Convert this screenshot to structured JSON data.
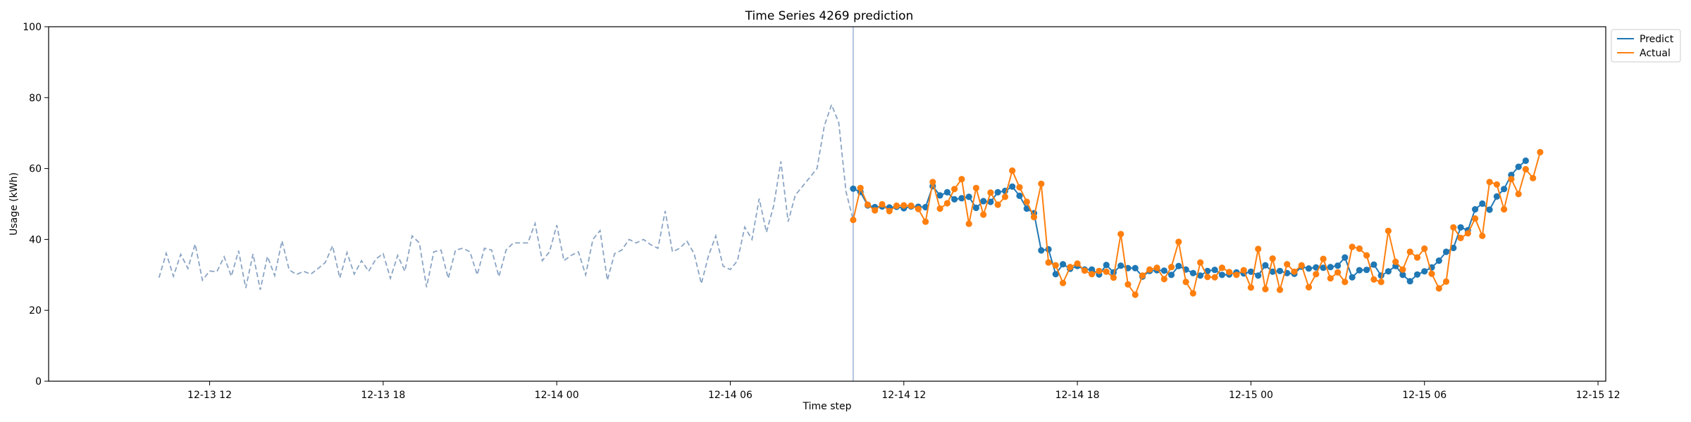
{
  "chart_data": {
    "type": "line",
    "title": "Time Series 4269 prediction",
    "xlabel": "Time step",
    "ylabel": "Usage (kWh)",
    "ylim": [
      0,
      100
    ],
    "yticks": [
      0,
      20,
      40,
      60,
      80,
      100
    ],
    "xlim": [
      "2025-12-13 06:26",
      "2025-12-15 12:16"
    ],
    "xticks": [
      {
        "t": "2025-12-13 12:00",
        "label": "12-13 12"
      },
      {
        "t": "2025-12-13 18:00",
        "label": "12-13 18"
      },
      {
        "t": "2025-12-14 00:00",
        "label": "12-14 00"
      },
      {
        "t": "2025-12-14 06:00",
        "label": "12-14 06"
      },
      {
        "t": "2025-12-14 12:00",
        "label": "12-14 12"
      },
      {
        "t": "2025-12-14 18:00",
        "label": "12-14 18"
      },
      {
        "t": "2025-12-15 00:00",
        "label": "12-15 00"
      },
      {
        "t": "2025-12-15 06:00",
        "label": "12-15 06"
      },
      {
        "t": "2025-12-15 12:00",
        "label": "12-15 12"
      }
    ],
    "grid": false,
    "legend_position": "top-right, outside plot",
    "forecast_start": "2025-12-14 10:15",
    "history": {
      "start": "2025-12-13 10:15",
      "interval_minutes": 15,
      "style": "dashed",
      "color": "#8aa4c4",
      "values": [
        29.2,
        36.1,
        29.6,
        35.8,
        31.8,
        38.7,
        28.5,
        31.1,
        30.9,
        35.1,
        29.6,
        36.8,
        26.3,
        35.9,
        25.8,
        35.2,
        29.8,
        39.6,
        31.4,
        30.1,
        31.0,
        30.2,
        31.8,
        33.5,
        38.2,
        29.1,
        36.3,
        30.2,
        34.0,
        31.0,
        34.5,
        36.0,
        29.0,
        35.5,
        31.0,
        41.0,
        39.0,
        26.5,
        36.5,
        37.0,
        29.0,
        37.0,
        37.5,
        36.5,
        30.0,
        37.5,
        37.0,
        29.5,
        37.0,
        39.0,
        39.0,
        39.0,
        44.5,
        34.0,
        36.5,
        44.0,
        34.0,
        35.5,
        36.5,
        30.0,
        40.0,
        42.5,
        28.5,
        36.0,
        37.0,
        40.0,
        39.0,
        40.0,
        38.5,
        37.5,
        48.0,
        36.5,
        37.5,
        39.5,
        36.0,
        27.5,
        35.5,
        41.0,
        32.5,
        31.5,
        34.0,
        43.5,
        40.0,
        51.5,
        42.0,
        49.5,
        62.0,
        45.0,
        52.5,
        55.0,
        57.5,
        60.0,
        72.0,
        78.0,
        73.0,
        53.5,
        45.5
      ]
    },
    "series": [
      {
        "name": "Predict",
        "color": "#1f77b4",
        "start": "2025-12-14 10:15",
        "interval_minutes": 15,
        "values": [
          54.3,
          53.4,
          49.6,
          49.1,
          49.3,
          49.0,
          49.2,
          48.8,
          49.3,
          49.2,
          49.1,
          55.0,
          52.4,
          53.3,
          51.3,
          51.6,
          52.0,
          48.9,
          50.8,
          50.6,
          53.3,
          53.7,
          54.9,
          52.3,
          48.7,
          47.4,
          36.9,
          37.2,
          30.2,
          33.0,
          31.7,
          32.5,
          31.5,
          31.5,
          30.1,
          32.8,
          30.7,
          32.6,
          31.9,
          31.9,
          29.5,
          31.1,
          31.3,
          31.2,
          30.0,
          32.5,
          31.5,
          30.5,
          29.8,
          31.1,
          31.4,
          30.0,
          30.1,
          30.7,
          30.4,
          30.9,
          29.8,
          32.7,
          30.9,
          31.1,
          30.5,
          30.3,
          32.3,
          31.8,
          32.1,
          32.0,
          32.2,
          32.6,
          34.9,
          29.3,
          31.3,
          31.4,
          32.9,
          29.8,
          31.0,
          32.5,
          30.0,
          28.2,
          30.1,
          31.0,
          32.1,
          34.0,
          36.5,
          37.6,
          43.4,
          42.6,
          48.5,
          50.1,
          48.4,
          52.1,
          54.2,
          58.2,
          60.5,
          62.2
        ]
      },
      {
        "name": "Actual",
        "color": "#ff7f0e",
        "start": "2025-12-14 10:15",
        "interval_minutes": 15,
        "values": [
          45.5,
          54.5,
          49.8,
          48.2,
          49.9,
          48.0,
          49.5,
          49.6,
          49.5,
          48.6,
          45.0,
          56.2,
          48.7,
          50.2,
          54.2,
          57.0,
          44.4,
          54.5,
          47.0,
          53.2,
          49.8,
          52.0,
          59.4,
          54.7,
          50.6,
          46.3,
          55.7,
          33.5,
          32.7,
          27.7,
          32.2,
          33.2,
          31.2,
          30.2,
          31.1,
          30.9,
          29.2,
          41.5,
          27.3,
          24.4,
          29.8,
          31.5,
          32.0,
          28.8,
          32.2,
          39.3,
          28.0,
          24.8,
          33.5,
          29.4,
          29.3,
          32.0,
          30.8,
          30.0,
          31.3,
          26.4,
          37.3,
          26.0,
          34.6,
          25.8,
          33.0,
          30.9,
          32.7,
          26.5,
          30.2,
          34.5,
          29.0,
          30.7,
          28.0,
          37.9,
          37.4,
          35.5,
          28.7,
          28.0,
          42.4,
          33.7,
          31.5,
          36.5,
          34.9,
          37.4,
          30.3,
          26.2,
          28.1,
          43.4,
          40.4,
          41.7,
          45.9,
          41.0,
          56.2,
          55.5,
          48.5,
          57.0,
          52.8,
          59.8,
          57.3,
          64.6
        ]
      }
    ]
  }
}
